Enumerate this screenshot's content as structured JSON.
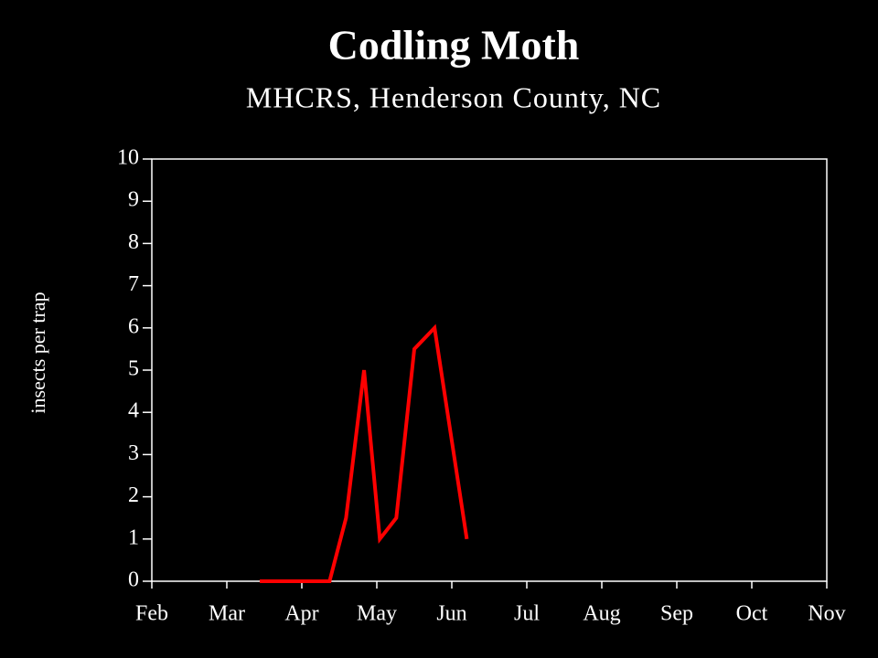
{
  "chart_data": {
    "type": "line",
    "title": "Codling Moth",
    "subtitle": "MHCRS, Henderson County, NC",
    "y_label": "insects per trap",
    "x": [
      1.44,
      1.9,
      2.37,
      2.59,
      2.83,
      3.04,
      3.26,
      3.5,
      3.77,
      4.2
    ],
    "values": [
      0,
      0,
      0,
      1.5,
      5,
      1,
      1.5,
      5.5,
      6,
      1
    ],
    "color": "#ff0000",
    "xlim": [
      0,
      9
    ],
    "xticks": [
      {
        "value": 0,
        "label": "Feb"
      },
      {
        "value": 1,
        "label": "Mar"
      },
      {
        "value": 2,
        "label": "Apr"
      },
      {
        "value": 3,
        "label": "May"
      },
      {
        "value": 4,
        "label": "Jun"
      },
      {
        "value": 5,
        "label": "Jul"
      },
      {
        "value": 6,
        "label": "Aug"
      },
      {
        "value": 7,
        "label": "Sep"
      },
      {
        "value": 8,
        "label": "Oct"
      },
      {
        "value": 9,
        "label": "Nov"
      }
    ],
    "ylim": [
      0,
      10
    ],
    "yticks": [
      0,
      1,
      2,
      3,
      4,
      5,
      6,
      7,
      8,
      9,
      10
    ],
    "grid": false
  }
}
